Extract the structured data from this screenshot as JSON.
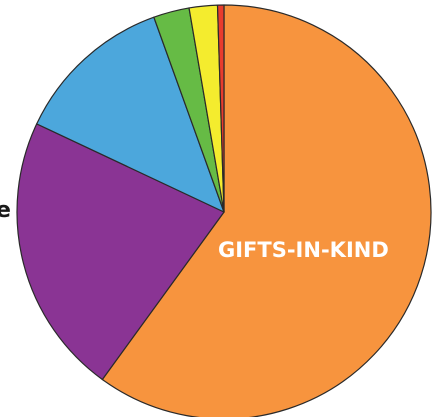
{
  "chart_data": {
    "type": "pie",
    "title": "",
    "slices": [
      {
        "label": "GIFTS-IN-KIND",
        "value": 60.0,
        "color": "#f7943e",
        "show_label": true
      },
      {
        "label": "",
        "value": 22.0,
        "color": "#8a3494",
        "show_label": false
      },
      {
        "label": "",
        "value": 12.5,
        "color": "#4ca7dc",
        "show_label": false
      },
      {
        "label": "",
        "value": 2.8,
        "color": "#66bb45",
        "show_label": false
      },
      {
        "label": "",
        "value": 2.2,
        "color": "#f4ec2e",
        "show_label": false
      },
      {
        "label": "",
        "value": 0.5,
        "color": "#e83c2d",
        "show_label": false
      }
    ],
    "start_angle_deg": 0,
    "direction": "clockwise",
    "edge_text": "e"
  }
}
